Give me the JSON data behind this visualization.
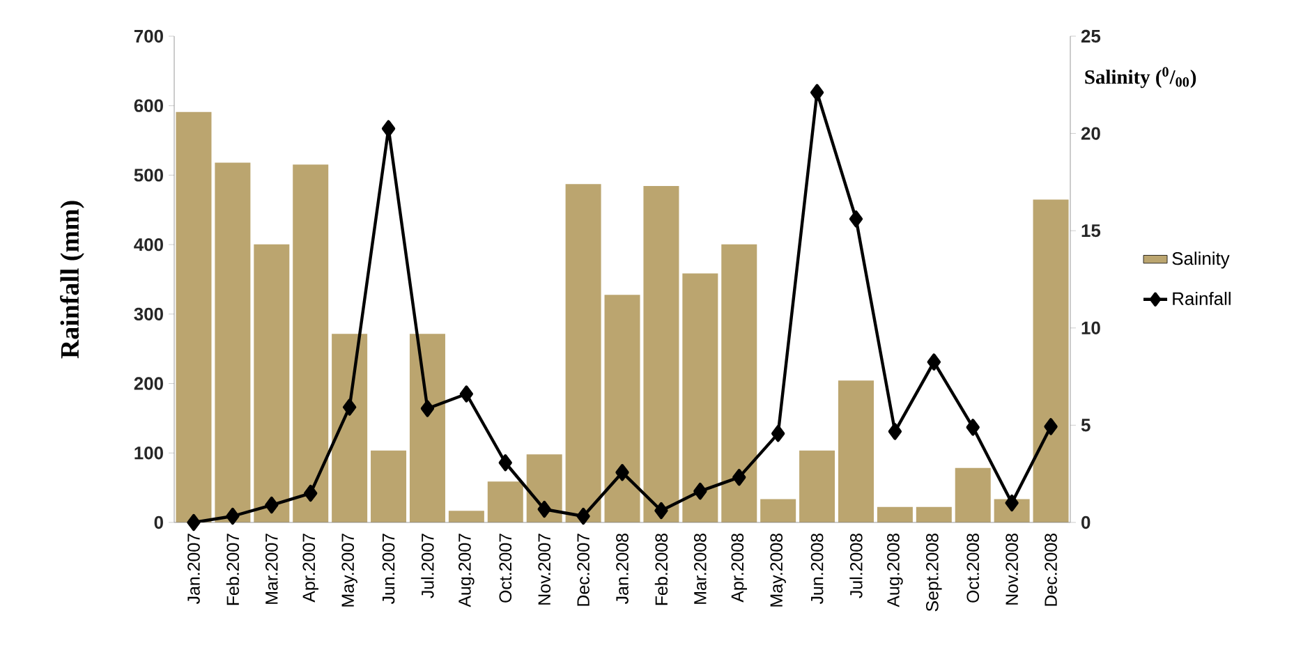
{
  "chart_data": {
    "type": "bar",
    "categories": [
      "Jan.2007",
      "Feb.2007",
      "Mar.2007",
      "Apr.2007",
      "May.2007",
      "Jun.2007",
      "Jul.2007",
      "Aug.2007",
      "Oct.2007",
      "Nov.2007",
      "Dec.2007",
      "Jan.2008",
      "Feb.2008",
      "Mar.2008",
      "Apr.2008",
      "May.2008",
      "Jun.2008",
      "Jul.2008",
      "Aug.2008",
      "Sept.2008",
      "Oct.2008",
      "Nov.2008",
      "Dec.2008"
    ],
    "series": [
      {
        "name": "Salinity",
        "axis": "y2",
        "color": "#bba56f",
        "values": [
          21.1,
          18.5,
          14.3,
          18.4,
          9.7,
          3.7,
          9.7,
          0.6,
          2.1,
          3.5,
          17.4,
          11.7,
          17.3,
          12.8,
          14.3,
          1.2,
          3.7,
          7.3,
          0.8,
          0.8,
          2.8,
          1.2,
          16.6
        ]
      },
      {
        "name": "Rainfall",
        "type": "line",
        "color": "#000000",
        "marker": "diamond",
        "values": [
          0,
          9,
          25,
          42,
          166,
          567,
          164,
          185,
          86,
          19,
          9,
          72,
          17,
          45,
          65,
          128,
          619,
          437,
          131,
          231,
          137,
          28,
          138
        ]
      }
    ],
    "ylabel": "Rainfall (mm)",
    "y2label": "Salinity ($^{0}$/$_{00}$)",
    "ylim": [
      0,
      700
    ],
    "yticks": [
      0,
      100,
      200,
      300,
      400,
      500,
      600,
      700
    ],
    "y2lim": [
      0,
      25
    ],
    "y2ticks": [
      0,
      5,
      10,
      15,
      20,
      25
    ],
    "legend": "right",
    "grid": false
  }
}
